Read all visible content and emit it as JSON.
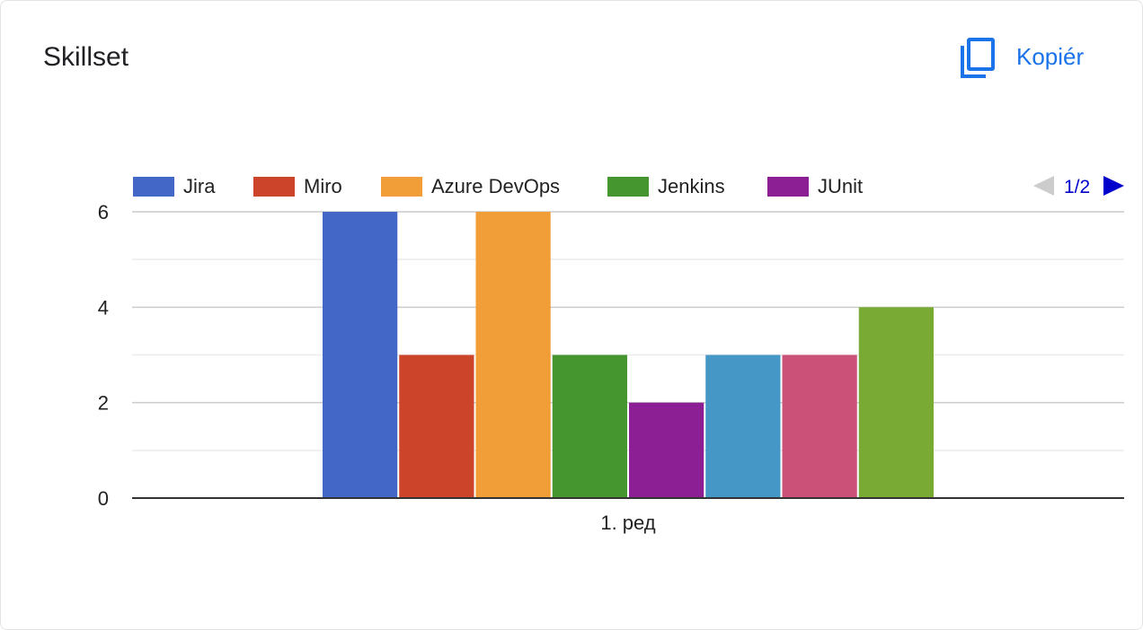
{
  "card": {
    "title": "Skillset",
    "copy_label": "Kopiér",
    "copy_icon": "copy-icon",
    "accent": "#1a73e8"
  },
  "legend": {
    "pager": "1/2",
    "prev_icon": "triangle-left-icon",
    "next_icon": "triangle-right-icon",
    "prev_enabled": false,
    "next_enabled": true
  },
  "chart_data": {
    "type": "bar",
    "title": "",
    "xlabel": "",
    "ylabel": "",
    "categories": [
      "1. ред"
    ],
    "ylim": [
      0,
      6
    ],
    "yticks": [
      0,
      2,
      4,
      6
    ],
    "grid": true,
    "legend_position": "top",
    "series": [
      {
        "name": "Jira",
        "values": [
          6
        ],
        "color": "#4267c7"
      },
      {
        "name": "Miro",
        "values": [
          3
        ],
        "color": "#cc4429"
      },
      {
        "name": "Azure DevOps",
        "values": [
          6
        ],
        "color": "#f29e38"
      },
      {
        "name": "Jenkins",
        "values": [
          3
        ],
        "color": "#46962f"
      },
      {
        "name": "JUnit",
        "values": [
          2
        ],
        "color": "#8c1f94"
      },
      {
        "name": "",
        "values": [
          3
        ],
        "color": "#4598c5"
      },
      {
        "name": "",
        "values": [
          3
        ],
        "color": "#cc5178"
      },
      {
        "name": "",
        "values": [
          4
        ],
        "color": "#79aa33"
      }
    ]
  }
}
